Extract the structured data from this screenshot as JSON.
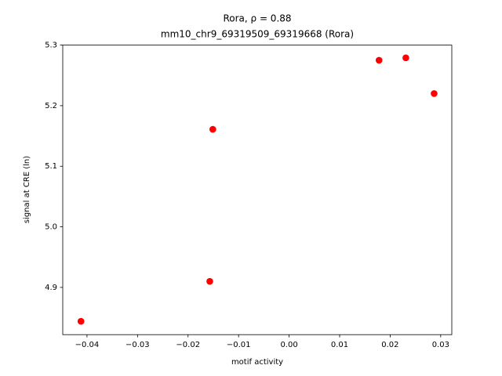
{
  "chart_data": {
    "type": "scatter",
    "title": "Rora, ρ = 0.88",
    "subtitle": "mm10_chr9_69319509_69319668 (Rora)",
    "x_label": "motif activity",
    "y_label": "signal at CRE (ln)",
    "color": "#ff0000",
    "x": [
      -0.0412,
      -0.0157,
      -0.0151,
      0.0178,
      0.0231,
      0.0287
    ],
    "values": [
      4.844,
      4.91,
      5.161,
      5.275,
      5.279,
      5.22
    ],
    "xlim": [
      -0.0448,
      0.0322
    ],
    "ylim": [
      4.822,
      5.3
    ],
    "xticks": [
      {
        "value": -0.04,
        "label": "−0.04"
      },
      {
        "value": -0.03,
        "label": "−0.03"
      },
      {
        "value": -0.02,
        "label": "−0.02"
      },
      {
        "value": -0.01,
        "label": "−0.01"
      },
      {
        "value": 0,
        "label": "0.00"
      },
      0.01,
      0.02,
      0.03
    ],
    "yticks": [
      4.9,
      {
        "value": 5,
        "label": "5.0"
      },
      5.1,
      5.2,
      5.3
    ]
  }
}
